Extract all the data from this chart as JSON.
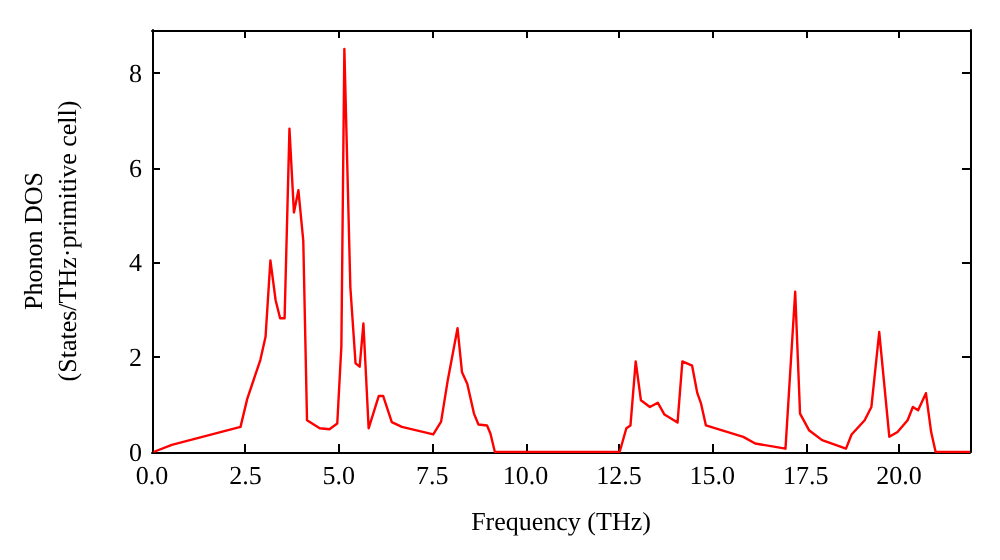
{
  "chart_data": {
    "type": "line",
    "xlabel": "Frequency (THz)",
    "ylabel": "Phonon DOS\n(States/THz·primitive cell)",
    "series": [
      {
        "color": "#ff0000",
        "x": [
          0.04,
          0.53,
          2.37,
          2.55,
          2.9,
          3.04,
          3.17,
          3.31,
          3.43,
          3.55,
          3.68,
          3.8,
          3.92,
          4.05,
          4.15,
          4.49,
          4.75,
          4.96,
          5.07,
          5.15,
          5.31,
          5.45,
          5.56,
          5.66,
          5.8,
          6.07,
          6.19,
          6.42,
          6.69,
          7.53,
          7.74,
          7.92,
          8.18,
          8.3,
          8.44,
          8.62,
          8.74,
          8.97,
          9.06,
          9.18,
          10.5,
          12.52,
          12.7,
          12.81,
          12.95,
          13.09,
          13.33,
          13.54,
          13.72,
          14.07,
          14.2,
          14.46,
          14.6,
          14.7,
          14.83,
          15.83,
          16.15,
          16.96,
          17.22,
          17.35,
          17.59,
          17.94,
          18.58,
          18.73,
          19.08,
          19.26,
          19.47,
          19.74,
          19.96,
          20.23,
          20.37,
          20.51,
          20.72,
          20.86,
          20.98,
          21.9
        ],
        "values": [
          0,
          0.15,
          0.53,
          1.12,
          1.94,
          2.43,
          4.04,
          3.2,
          2.82,
          2.82,
          6.82,
          5.05,
          5.52,
          4.46,
          0.67,
          0.5,
          0.48,
          0.6,
          2.23,
          8.5,
          3.48,
          1.87,
          1.8,
          2.71,
          0.5,
          1.18,
          1.18,
          0.63,
          0.53,
          0.37,
          0.64,
          1.52,
          2.61,
          1.68,
          1.44,
          0.81,
          0.58,
          0.56,
          0.39,
          0,
          0,
          0,
          0.5,
          0.56,
          1.91,
          1.09,
          0.95,
          1.04,
          0.79,
          0.62,
          1.91,
          1.82,
          1.24,
          1.02,
          0.56,
          0.32,
          0.18,
          0.07,
          3.38,
          0.81,
          0.46,
          0.25,
          0.07,
          0.37,
          0.67,
          0.95,
          2.53,
          0.32,
          0.42,
          0.67,
          0.95,
          0.88,
          1.24,
          0.42,
          0,
          0
        ]
      }
    ],
    "xlim": [
      0,
      21.9
    ],
    "ylim": [
      0,
      8.9
    ],
    "xticks": [
      {
        "value": 0,
        "label": "0.0"
      },
      2.5,
      {
        "value": 5,
        "label": "5.0"
      },
      7.5,
      {
        "value": 10,
        "label": "10.0"
      },
      12.5,
      {
        "value": 15,
        "label": "15.0"
      },
      17.5,
      {
        "value": 20,
        "label": "20.0"
      }
    ],
    "yticks": [
      0,
      2,
      4,
      6,
      8
    ],
    "grid": false,
    "marker": "none",
    "line_style": "solid"
  }
}
